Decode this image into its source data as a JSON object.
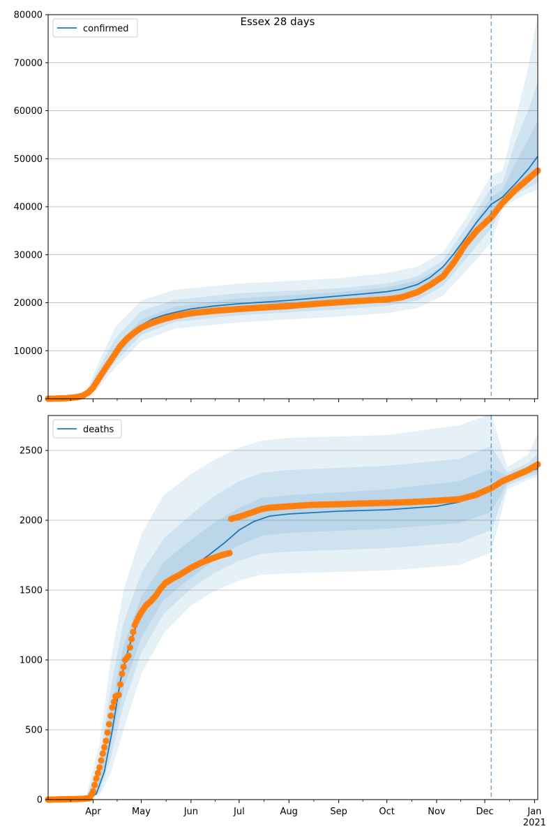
{
  "figure": {
    "title": "Essex 28 days"
  },
  "colors": {
    "model": "#1f77b4",
    "observed": "#ff7f0e",
    "band": "#1f77b4",
    "grid": "#b0b0b0"
  },
  "x_axis": {
    "month_labels": [
      "Apr",
      "May",
      "Jun",
      "Jul",
      "Aug",
      "Sep",
      "Oct",
      "Nov",
      "Dec",
      "Jan"
    ],
    "month_dates": [
      "2020-04-01",
      "2020-05-01",
      "2020-06-01",
      "2020-07-01",
      "2020-08-01",
      "2020-09-01",
      "2020-10-01",
      "2020-11-01",
      "2020-12-01",
      "2021-01-01"
    ],
    "year_label": "2021",
    "range": [
      "2020-03-04",
      "2021-01-03"
    ],
    "forecast_start": "2020-12-05"
  },
  "chart_data": [
    {
      "type": "line",
      "legend": {
        "label": "confirmed",
        "placement": "upper-left"
      },
      "ylim": [
        0,
        80000
      ],
      "yticks": [
        0,
        10000,
        20000,
        30000,
        40000,
        50000,
        60000,
        70000,
        80000
      ],
      "grid": "horizontal",
      "model_line": [
        [
          "2020-03-04",
          0
        ],
        [
          "2020-03-20",
          300
        ],
        [
          "2020-03-28",
          1000
        ],
        [
          "2020-04-01",
          2500
        ],
        [
          "2020-04-05",
          4500
        ],
        [
          "2020-04-10",
          7000
        ],
        [
          "2020-04-15",
          9500
        ],
        [
          "2020-04-20",
          11800
        ],
        [
          "2020-04-25",
          13600
        ],
        [
          "2020-05-01",
          15300
        ],
        [
          "2020-05-08",
          16600
        ],
        [
          "2020-05-15",
          17400
        ],
        [
          "2020-05-22",
          18000
        ],
        [
          "2020-06-01",
          18700
        ],
        [
          "2020-06-15",
          19300
        ],
        [
          "2020-07-01",
          19800
        ],
        [
          "2020-07-15",
          20100
        ],
        [
          "2020-08-01",
          20500
        ],
        [
          "2020-08-15",
          20900
        ],
        [
          "2020-09-01",
          21400
        ],
        [
          "2020-09-15",
          21800
        ],
        [
          "2020-10-01",
          22300
        ],
        [
          "2020-10-10",
          22800
        ],
        [
          "2020-10-20",
          23800
        ],
        [
          "2020-10-28",
          25300
        ],
        [
          "2020-11-05",
          27500
        ],
        [
          "2020-11-12",
          30300
        ],
        [
          "2020-11-19",
          33500
        ],
        [
          "2020-11-26",
          36800
        ],
        [
          "2020-12-05",
          40500
        ],
        [
          "2020-12-12",
          42000
        ],
        [
          "2020-12-20",
          44800
        ],
        [
          "2020-12-28",
          47800
        ],
        [
          "2021-01-03",
          50500
        ]
      ],
      "bands": [
        {
          "dates": [
            "2020-03-04",
            "2020-03-28",
            "2020-04-05",
            "2020-04-15",
            "2020-05-01",
            "2020-05-22",
            "2020-07-01",
            "2020-09-01",
            "2020-10-01",
            "2020-10-20",
            "2020-11-05",
            "2020-11-19",
            "2020-12-05",
            "2020-12-12",
            "2020-12-20",
            "2020-12-28",
            "2021-01-03"
          ],
          "lower": [
            0,
            300,
            2500,
            6500,
            12000,
            14600,
            15900,
            17100,
            17800,
            18900,
            21500,
            26500,
            32500,
            39500,
            41500,
            42800,
            43500
          ],
          "upper": [
            0,
            1600,
            8000,
            15000,
            20500,
            22700,
            24000,
            25100,
            26200,
            27500,
            30500,
            37500,
            46500,
            47500,
            58000,
            69000,
            80000
          ]
        },
        {
          "dates": [
            "2020-03-04",
            "2020-03-28",
            "2020-04-05",
            "2020-04-15",
            "2020-05-01",
            "2020-05-22",
            "2020-07-01",
            "2020-09-01",
            "2020-10-01",
            "2020-10-20",
            "2020-11-05",
            "2020-11-19",
            "2020-12-05",
            "2020-12-12",
            "2020-12-20",
            "2020-12-28",
            "2021-01-03"
          ],
          "lower": [
            0,
            500,
            3200,
            7800,
            13300,
            16000,
            17400,
            18600,
            19300,
            20500,
            23500,
            29000,
            35500,
            40000,
            42500,
            44000,
            45000
          ],
          "upper": [
            0,
            1400,
            6600,
            12600,
            18300,
            20600,
            22000,
            23000,
            24000,
            25500,
            28800,
            35500,
            44000,
            45000,
            53500,
            60000,
            66000
          ]
        },
        {
          "dates": [
            "2020-03-04",
            "2020-03-28",
            "2020-04-05",
            "2020-04-15",
            "2020-05-01",
            "2020-05-22",
            "2020-07-01",
            "2020-09-01",
            "2020-10-01",
            "2020-10-20",
            "2020-11-05",
            "2020-11-19",
            "2020-12-05",
            "2020-12-12",
            "2020-12-20",
            "2020-12-28",
            "2021-01-03"
          ],
          "lower": [
            0,
            700,
            3800,
            8700,
            14300,
            17000,
            18500,
            19800,
            20600,
            21800,
            25000,
            31000,
            37500,
            41000,
            43500,
            45500,
            46500
          ],
          "upper": [
            0,
            1200,
            5400,
            10800,
            16500,
            19200,
            20900,
            22200,
            23200,
            24600,
            27500,
            34000,
            42000,
            43500,
            49000,
            54000,
            58000
          ]
        }
      ],
      "observed": {
        "segments": [
          {
            "dates": [
              "2020-03-04",
              "2020-03-15",
              "2020-03-22",
              "2020-03-26",
              "2020-03-29",
              "2020-04-01",
              "2020-04-04",
              "2020-04-07",
              "2020-04-10",
              "2020-04-14",
              "2020-04-18",
              "2020-04-22",
              "2020-04-26",
              "2020-05-01",
              "2020-05-08",
              "2020-05-15",
              "2020-05-22",
              "2020-06-01",
              "2020-06-15",
              "2020-07-01",
              "2020-07-15",
              "2020-08-01",
              "2020-08-15",
              "2020-09-01",
              "2020-09-15",
              "2020-10-01",
              "2020-10-10",
              "2020-10-20",
              "2020-10-28",
              "2020-11-05",
              "2020-11-12",
              "2020-11-19",
              "2020-11-26",
              "2020-12-05",
              "2020-12-12",
              "2020-12-20",
              "2020-12-28",
              "2021-01-03"
            ],
            "values": [
              0,
              100,
              300,
              700,
              1300,
              2300,
              3900,
              5500,
              7000,
              9000,
              11000,
              12500,
              13600,
              14800,
              15800,
              16600,
              17200,
              17800,
              18300,
              18700,
              19000,
              19300,
              19700,
              20100,
              20400,
              20700,
              21100,
              22200,
              23700,
              25500,
              28500,
              32200,
              35000,
              37800,
              40800,
              43500,
              45800,
              47500
            ]
          }
        ]
      }
    },
    {
      "type": "line",
      "legend": {
        "label": "deaths",
        "placement": "upper-left"
      },
      "ylim": [
        0,
        2750
      ],
      "yticks": [
        0,
        500,
        1000,
        1500,
        2000,
        2500
      ],
      "grid": "horizontal",
      "model_line": [
        [
          "2020-03-04",
          0
        ],
        [
          "2020-03-28",
          10
        ],
        [
          "2020-04-03",
          40
        ],
        [
          "2020-04-08",
          200
        ],
        [
          "2020-04-13",
          500
        ],
        [
          "2020-04-18",
          850
        ],
        [
          "2020-04-23",
          1080
        ],
        [
          "2020-04-28",
          1250
        ],
        [
          "2020-05-05",
          1390
        ],
        [
          "2020-05-12",
          1490
        ],
        [
          "2020-05-20",
          1570
        ],
        [
          "2020-06-01",
          1660
        ],
        [
          "2020-06-12",
          1750
        ],
        [
          "2020-06-22",
          1840
        ],
        [
          "2020-07-01",
          1930
        ],
        [
          "2020-07-10",
          1990
        ],
        [
          "2020-07-20",
          2030
        ],
        [
          "2020-08-01",
          2045
        ],
        [
          "2020-09-01",
          2065
        ],
        [
          "2020-10-01",
          2075
        ],
        [
          "2020-11-01",
          2100
        ],
        [
          "2020-11-15",
          2130
        ],
        [
          "2020-12-05",
          2210
        ],
        [
          "2020-12-15",
          2290
        ],
        [
          "2020-12-25",
          2340
        ],
        [
          "2021-01-03",
          2370
        ]
      ],
      "bands": [
        {
          "dates": [
            "2020-03-04",
            "2020-03-28",
            "2020-04-05",
            "2020-04-12",
            "2020-04-20",
            "2020-05-01",
            "2020-05-15",
            "2020-06-01",
            "2020-06-15",
            "2020-07-01",
            "2020-07-15",
            "2020-08-01",
            "2020-10-01",
            "2020-11-15",
            "2020-12-05",
            "2020-12-15",
            "2020-12-28",
            "2021-01-03"
          ],
          "lower": [
            0,
            0,
            30,
            190,
            500,
            900,
            1190,
            1390,
            1490,
            1570,
            1610,
            1620,
            1640,
            1680,
            1770,
            2220,
            2290,
            2310
          ],
          "upper": [
            0,
            30,
            400,
            1000,
            1500,
            1900,
            2180,
            2330,
            2430,
            2520,
            2570,
            2590,
            2610,
            2680,
            2760,
            2380,
            2470,
            2620
          ]
        },
        {
          "dates": [
            "2020-03-04",
            "2020-03-28",
            "2020-04-05",
            "2020-04-12",
            "2020-04-20",
            "2020-05-01",
            "2020-05-15",
            "2020-06-01",
            "2020-06-15",
            "2020-07-01",
            "2020-07-15",
            "2020-08-01",
            "2020-10-01",
            "2020-11-15",
            "2020-12-05",
            "2020-12-15",
            "2020-12-28",
            "2021-01-03"
          ],
          "lower": [
            0,
            0,
            50,
            300,
            680,
            1050,
            1330,
            1510,
            1620,
            1710,
            1760,
            1775,
            1800,
            1840,
            1930,
            2250,
            2310,
            2330
          ],
          "upper": [
            0,
            20,
            280,
            800,
            1270,
            1620,
            1870,
            2040,
            2170,
            2280,
            2340,
            2360,
            2390,
            2440,
            2530,
            2340,
            2410,
            2480
          ]
        },
        {
          "dates": [
            "2020-03-04",
            "2020-03-28",
            "2020-04-05",
            "2020-04-12",
            "2020-04-20",
            "2020-05-01",
            "2020-05-15",
            "2020-06-01",
            "2020-06-15",
            "2020-07-01",
            "2020-07-15",
            "2020-08-01",
            "2020-10-01",
            "2020-11-15",
            "2020-12-05",
            "2020-12-15",
            "2020-12-28",
            "2021-01-03"
          ],
          "lower": [
            0,
            5,
            80,
            400,
            800,
            1160,
            1430,
            1590,
            1710,
            1820,
            1890,
            1910,
            1940,
            1980,
            2060,
            2270,
            2330,
            2350
          ],
          "upper": [
            0,
            15,
            200,
            650,
            1100,
            1450,
            1700,
            1860,
            1980,
            2090,
            2160,
            2180,
            2220,
            2280,
            2370,
            2320,
            2380,
            2420
          ]
        }
      ],
      "observed": {
        "segments": [
          {
            "dates": [
              "2020-03-04",
              "2020-03-25",
              "2020-03-30",
              "2020-04-01",
              "2020-04-03",
              "2020-04-05",
              "2020-04-07",
              "2020-04-09",
              "2020-04-11",
              "2020-04-13",
              "2020-04-15",
              "2020-04-17",
              "2020-04-19",
              "2020-04-21",
              "2020-04-23",
              "2020-04-25",
              "2020-04-27",
              "2020-04-29",
              "2020-05-01",
              "2020-05-04",
              "2020-05-07",
              "2020-05-10",
              "2020-05-13",
              "2020-05-16",
              "2020-05-20",
              "2020-05-25",
              "2020-06-01",
              "2020-06-08",
              "2020-06-15",
              "2020-06-20",
              "2020-06-25"
            ],
            "values": [
              0,
              5,
              10,
              60,
              150,
              230,
              330,
              420,
              540,
              660,
              740,
              750,
              900,
              1000,
              1030,
              1150,
              1250,
              1300,
              1340,
              1390,
              1420,
              1460,
              1510,
              1550,
              1580,
              1610,
              1660,
              1700,
              1730,
              1750,
              1765
            ]
          },
          {
            "dates": [
              "2020-06-26",
              "2020-07-01",
              "2020-07-05",
              "2020-07-10",
              "2020-07-15",
              "2020-07-20",
              "2020-08-01",
              "2020-08-15",
              "2020-09-01",
              "2020-09-15",
              "2020-10-01",
              "2020-10-15",
              "2020-11-01",
              "2020-11-15",
              "2020-11-25",
              "2020-12-05",
              "2020-12-12",
              "2020-12-20",
              "2020-12-28",
              "2021-01-03"
            ],
            "values": [
              2010,
              2025,
              2040,
              2060,
              2080,
              2090,
              2100,
              2110,
              2115,
              2120,
              2125,
              2130,
              2140,
              2150,
              2180,
              2230,
              2280,
              2320,
              2360,
              2400
            ]
          }
        ]
      }
    }
  ]
}
